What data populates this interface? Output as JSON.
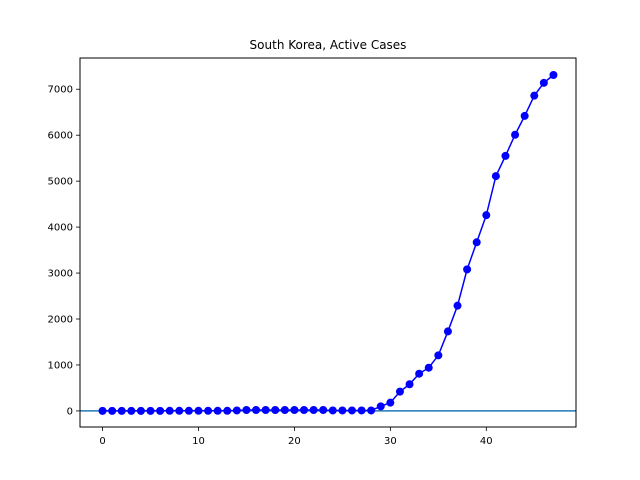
{
  "chart_data": {
    "type": "line",
    "title": "South Korea, Active Cases",
    "xlabel": "",
    "ylabel": "",
    "xlim": [
      -2.35,
      49.35
    ],
    "ylim": [
      -350,
      7680
    ],
    "xticks": [
      0,
      10,
      20,
      30,
      40
    ],
    "yticks": [
      0,
      1000,
      2000,
      3000,
      4000,
      5000,
      6000,
      7000
    ],
    "grid": false,
    "legend": "none",
    "line_color": "#0000ff",
    "reference_line": {
      "y": 0,
      "color": "#1f77b4"
    },
    "x": [
      0,
      1,
      2,
      3,
      4,
      5,
      6,
      7,
      8,
      9,
      10,
      11,
      12,
      13,
      14,
      15,
      16,
      17,
      18,
      19,
      20,
      21,
      22,
      23,
      24,
      25,
      26,
      27,
      28,
      29,
      30,
      31,
      32,
      33,
      34,
      35,
      36,
      37,
      38,
      39,
      40,
      41,
      42,
      43,
      44,
      45,
      46,
      47
    ],
    "series": [
      {
        "values": [
          1,
          1,
          1,
          1,
          1,
          1,
          1,
          3,
          3,
          3,
          3,
          3,
          3,
          3,
          10,
          20,
          20,
          20,
          20,
          20,
          20,
          20,
          20,
          20,
          10,
          10,
          10,
          10,
          10,
          100,
          180,
          420,
          580,
          810,
          940,
          1210,
          1730,
          2290,
          3080,
          3670,
          4260,
          5110,
          5550,
          6010,
          6420,
          6860,
          7140,
          7310
        ]
      }
    ]
  }
}
